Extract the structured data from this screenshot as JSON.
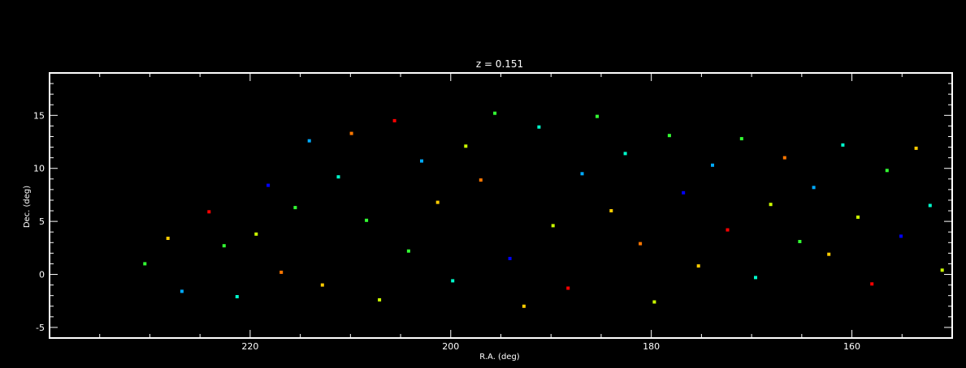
{
  "chart_data": {
    "type": "scatter",
    "title": "z = 0.151",
    "xlabel": "R.A. (deg)",
    "ylabel": "Dec. (deg)",
    "xlim": [
      240,
      150
    ],
    "ylim": [
      -6,
      19
    ],
    "x_reversed": true,
    "xticks": [
      220,
      200,
      180,
      160
    ],
    "yticks": [
      -5,
      0,
      5,
      10,
      15
    ],
    "grid": false,
    "legend": "none",
    "background": "#000000",
    "foreground": "#ffffff",
    "marker": "square",
    "color_scale": [
      "#6a00a8",
      "#0000ff",
      "#00aaff",
      "#00ffcc",
      "#33ff33",
      "#ccff00",
      "#ffcc00",
      "#ff7700",
      "#ff0000"
    ],
    "points": [
      {
        "x": 230.5,
        "y": 1.0,
        "c": 4
      },
      {
        "x": 228.2,
        "y": 3.4,
        "c": 6
      },
      {
        "x": 226.8,
        "y": -1.6,
        "c": 2
      },
      {
        "x": 224.1,
        "y": 5.9,
        "c": 8
      },
      {
        "x": 222.6,
        "y": 2.7,
        "c": 4
      },
      {
        "x": 221.3,
        "y": -2.1,
        "c": 3
      },
      {
        "x": 219.4,
        "y": 3.8,
        "c": 5
      },
      {
        "x": 218.2,
        "y": 8.4,
        "c": 1
      },
      {
        "x": 216.9,
        "y": 0.2,
        "c": 7
      },
      {
        "x": 215.5,
        "y": 6.3,
        "c": 4
      },
      {
        "x": 214.1,
        "y": 12.6,
        "c": 2
      },
      {
        "x": 212.8,
        "y": -1.0,
        "c": 6
      },
      {
        "x": 211.2,
        "y": 9.2,
        "c": 3
      },
      {
        "x": 209.9,
        "y": 13.3,
        "c": 7
      },
      {
        "x": 208.4,
        "y": 5.1,
        "c": 4
      },
      {
        "x": 207.1,
        "y": -2.4,
        "c": 5
      },
      {
        "x": 205.6,
        "y": 14.5,
        "c": 8
      },
      {
        "x": 204.2,
        "y": 2.2,
        "c": 4
      },
      {
        "x": 202.9,
        "y": 10.7,
        "c": 2
      },
      {
        "x": 201.3,
        "y": 6.8,
        "c": 6
      },
      {
        "x": 199.8,
        "y": -0.6,
        "c": 3
      },
      {
        "x": 198.5,
        "y": 12.1,
        "c": 5
      },
      {
        "x": 197.0,
        "y": 8.9,
        "c": 7
      },
      {
        "x": 195.6,
        "y": 15.2,
        "c": 4
      },
      {
        "x": 194.1,
        "y": 1.5,
        "c": 1
      },
      {
        "x": 192.7,
        "y": -3.0,
        "c": 6
      },
      {
        "x": 191.2,
        "y": 13.9,
        "c": 3
      },
      {
        "x": 189.8,
        "y": 4.6,
        "c": 5
      },
      {
        "x": 188.3,
        "y": -1.3,
        "c": 8
      },
      {
        "x": 186.9,
        "y": 9.5,
        "c": 2
      },
      {
        "x": 185.4,
        "y": 14.9,
        "c": 4
      },
      {
        "x": 184.0,
        "y": 6.0,
        "c": 6
      },
      {
        "x": 182.6,
        "y": 11.4,
        "c": 3
      },
      {
        "x": 181.1,
        "y": 2.9,
        "c": 7
      },
      {
        "x": 179.7,
        "y": -2.6,
        "c": 5
      },
      {
        "x": 178.2,
        "y": 13.1,
        "c": 4
      },
      {
        "x": 176.8,
        "y": 7.7,
        "c": 1
      },
      {
        "x": 175.3,
        "y": 0.8,
        "c": 6
      },
      {
        "x": 173.9,
        "y": 10.3,
        "c": 2
      },
      {
        "x": 172.4,
        "y": 4.2,
        "c": 8
      },
      {
        "x": 171.0,
        "y": 12.8,
        "c": 4
      },
      {
        "x": 169.6,
        "y": -0.3,
        "c": 3
      },
      {
        "x": 168.1,
        "y": 6.6,
        "c": 5
      },
      {
        "x": 166.7,
        "y": 11.0,
        "c": 7
      },
      {
        "x": 165.2,
        "y": 3.1,
        "c": 4
      },
      {
        "x": 163.8,
        "y": 8.2,
        "c": 2
      },
      {
        "x": 162.3,
        "y": 1.9,
        "c": 6
      },
      {
        "x": 160.9,
        "y": 12.2,
        "c": 3
      },
      {
        "x": 159.4,
        "y": 5.4,
        "c": 5
      },
      {
        "x": 158.0,
        "y": -0.9,
        "c": 8
      },
      {
        "x": 156.5,
        "y": 9.8,
        "c": 4
      },
      {
        "x": 155.1,
        "y": 3.6,
        "c": 1
      },
      {
        "x": 153.6,
        "y": 11.9,
        "c": 6
      },
      {
        "x": 152.2,
        "y": 6.5,
        "c": 3
      },
      {
        "x": 151.0,
        "y": 0.4,
        "c": 5
      }
    ]
  }
}
